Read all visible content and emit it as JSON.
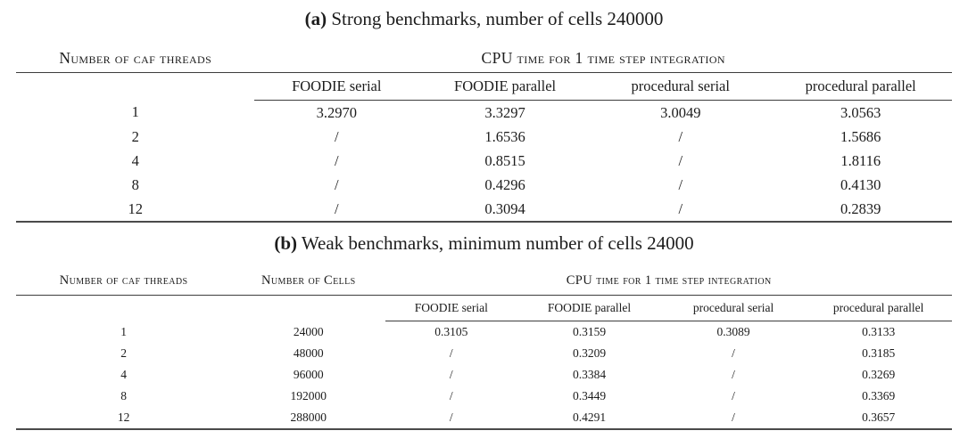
{
  "colors": {
    "background": "#ffffff",
    "text": "#1c1c1c",
    "rule": "#3d3d3d",
    "heavy_rule": "#4a4a4a"
  },
  "table_a": {
    "caption_label": "(a)",
    "caption_text": "Strong benchmarks, number of cells 240000",
    "header": {
      "threads": "Number of caf threads",
      "cpu_time": "CPU time for 1 time step integration"
    },
    "sub_columns": [
      "FOODIE serial",
      "FOODIE parallel",
      "procedural serial",
      "procedural parallel"
    ],
    "rows": [
      [
        "1",
        "3.2970",
        "3.3297",
        "3.0049",
        "3.0563"
      ],
      [
        "2",
        "/",
        "1.6536",
        "/",
        "1.5686"
      ],
      [
        "4",
        "/",
        "0.8515",
        "/",
        "1.8116"
      ],
      [
        "8",
        "/",
        "0.4296",
        "/",
        "0.4130"
      ],
      [
        "12",
        "/",
        "0.3094",
        "/",
        "0.2839"
      ]
    ]
  },
  "table_b": {
    "caption_label": "(b)",
    "caption_text": "Weak benchmarks, minimum number of cells 24000",
    "header": {
      "threads": "Number of caf threads",
      "cells": "Number of Cells",
      "cpu_time": "CPU time for 1 time step integration"
    },
    "sub_columns": [
      "FOODIE serial",
      "FOODIE parallel",
      "procedural serial",
      "procedural parallel"
    ],
    "rows": [
      [
        "1",
        "24000",
        "0.3105",
        "0.3159",
        "0.3089",
        "0.3133"
      ],
      [
        "2",
        "48000",
        "/",
        "0.3209",
        "/",
        "0.3185"
      ],
      [
        "4",
        "96000",
        "/",
        "0.3384",
        "/",
        "0.3269"
      ],
      [
        "8",
        "192000",
        "/",
        "0.3449",
        "/",
        "0.3369"
      ],
      [
        "12",
        "288000",
        "/",
        "0.4291",
        "/",
        "0.3657"
      ]
    ]
  }
}
